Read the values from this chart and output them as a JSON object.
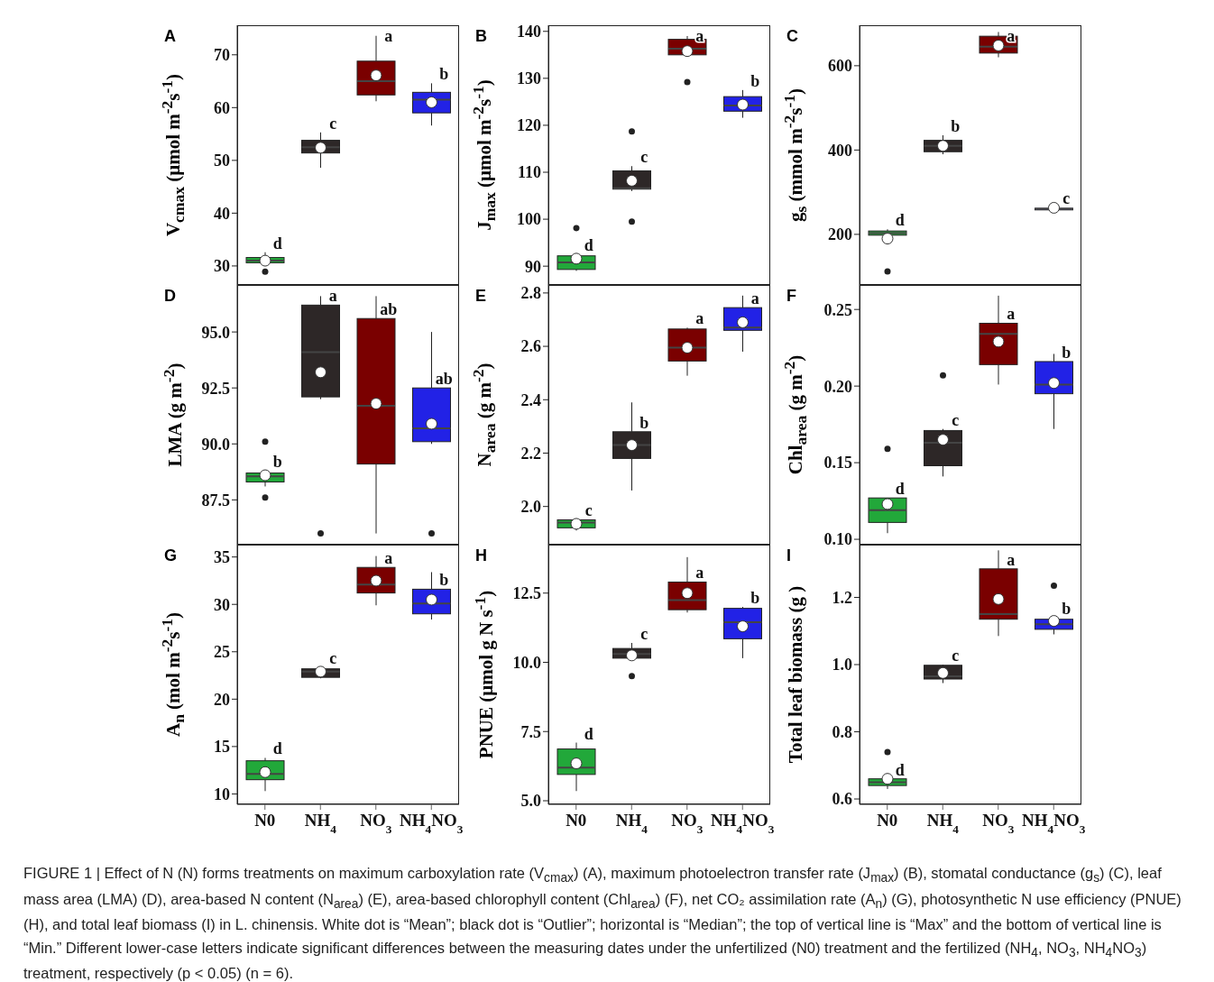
{
  "chart_data": [
    {
      "type": "box",
      "title": "A",
      "ylabel": "V$_{cmax}$ (μmol m$^{-2}$s$^{-1}$)",
      "categories": [
        "N0",
        "NH$_{4}$",
        "NO$_{3}$",
        "NH$_{4}$NO$_{3}$"
      ],
      "colors": [
        "#22a83a",
        "#2d2727",
        "#7a0000",
        "#2222e6"
      ],
      "ylim": [
        26.4,
        75.6
      ],
      "yticks": [
        30,
        40,
        50,
        60,
        70
      ],
      "tick_labels": "y",
      "boxes": [
        {
          "low": 30.2,
          "q1": 30.6,
          "median": 31.0,
          "q3": 31.6,
          "high": 32.6,
          "mean": 31.0,
          "outliers": [
            28.9
          ]
        },
        {
          "low": 48.6,
          "q1": 51.4,
          "median": 52.5,
          "q3": 53.8,
          "high": 55.3,
          "mean": 52.4
        },
        {
          "low": 61.2,
          "q1": 62.4,
          "median": 65.0,
          "q3": 68.8,
          "high": 73.6,
          "mean": 66.1
        },
        {
          "low": 56.6,
          "q1": 59.0,
          "median": 61.5,
          "q3": 62.9,
          "high": 64.6,
          "mean": 61.0
        }
      ],
      "annotations": [
        {
          "text": "d",
          "x": "N0",
          "y": 32.6
        },
        {
          "text": "c",
          "x": "NH$_{4}$",
          "y": 55.3
        },
        {
          "text": "a",
          "x": "NO$_{3}$",
          "y": 73.6
        },
        {
          "text": "b",
          "x": "NH$_{4}$NO$_{3}$",
          "y": 64.6
        }
      ]
    },
    {
      "type": "box",
      "title": "B",
      "ylabel": "J$_{max}$ (μmol m$^{-2}$s$^{-1}$)",
      "categories": [
        "N0",
        "NH$_{4}$",
        "NO$_{3}$",
        "NH$_{4}$NO$_{3}$"
      ],
      "colors": [
        "#22a83a",
        "#2d2727",
        "#7a0000",
        "#2222e6"
      ],
      "ylim": [
        86,
        141.3
      ],
      "yticks": [
        90,
        100,
        110,
        120,
        130,
        140
      ],
      "tick_labels": "y",
      "boxes": [
        {
          "low": 89.0,
          "q1": 89.3,
          "median": 90.8,
          "q3": 92.2,
          "high": 92.5,
          "mean": 91.6,
          "outliers": [
            98.1
          ]
        },
        {
          "low": 106.0,
          "q1": 106.4,
          "median": 106.6,
          "q3": 110.3,
          "high": 111.3,
          "mean": 108.2,
          "outliers": [
            118.7,
            99.5
          ]
        },
        {
          "low": 135.0,
          "q1": 135.0,
          "median": 136.3,
          "q3": 138.3,
          "high": 139.0,
          "mean": 135.8,
          "outliers": [
            129.2
          ]
        },
        {
          "low": 121.6,
          "q1": 123.0,
          "median": 124.2,
          "q3": 126.1,
          "high": 127.5,
          "mean": 124.4
        }
      ],
      "annotations": [
        {
          "text": "d",
          "x": "N0",
          "y": 92.5
        },
        {
          "text": "c",
          "x": "NH$_{4}$",
          "y": 111.3
        },
        {
          "text": "a",
          "x": "NO$_{3}$",
          "y": 139.0
        },
        {
          "text": "b",
          "x": "NH$_{4}$NO$_{3}$",
          "y": 127.5
        }
      ]
    },
    {
      "type": "box",
      "title": "C",
      "ylabel": "g$_{s}$ (mmol m$^{-2}$s$^{-1}$)",
      "categories": [
        "N0",
        "NH$_{4}$",
        "NO$_{3}$",
        "NH$_{4}$NO$_{3}$"
      ],
      "colors": [
        "#22a83a",
        "#2d2727",
        "#7a0000",
        "#2222e6"
      ],
      "ylim": [
        80,
        696
      ],
      "yticks": [
        200,
        400,
        600
      ],
      "tick_labels": "y",
      "boxes": [
        {
          "low": 195,
          "q1": 198,
          "median": 203,
          "q3": 208,
          "high": 212,
          "mean": 190,
          "outliers": [
            112
          ]
        },
        {
          "low": 390,
          "q1": 396,
          "median": 410,
          "q3": 423,
          "high": 435,
          "mean": 410
        },
        {
          "low": 620,
          "q1": 630,
          "median": 645,
          "q3": 670,
          "high": 680,
          "mean": 648
        },
        {
          "low": 257,
          "q1": 258,
          "median": 260,
          "q3": 262,
          "high": 263,
          "mean": 263
        }
      ],
      "annotations": [
        {
          "text": "d",
          "x": "N0",
          "y": 212
        },
        {
          "text": "b",
          "x": "NH$_{4}$",
          "y": 435
        },
        {
          "text": "a",
          "x": "NO$_{3}$",
          "y": 680
        },
        {
          "text": "c",
          "x": "NH$_{4}$NO$_{3}$",
          "y": 263
        }
      ]
    },
    {
      "type": "box",
      "title": "D",
      "ylabel": "LMA (g m$^{-2}$)",
      "categories": [
        "N0",
        "NH$_{4}$",
        "NO$_{3}$",
        "NH$_{4}$NO$_{3}$"
      ],
      "colors": [
        "#22a83a",
        "#2d2727",
        "#7a0000",
        "#2222e6"
      ],
      "ylim": [
        85.5,
        97.1
      ],
      "yticks": [
        {
          "value": 87.5,
          "label": "87.5"
        },
        {
          "value": 90,
          "label": "90.0"
        },
        {
          "value": 92.5,
          "label": "92.5"
        },
        {
          "value": 95,
          "label": "95.0"
        }
      ],
      "tick_labels": "y",
      "boxes": [
        {
          "low": 88.1,
          "q1": 88.3,
          "median": 88.55,
          "q3": 88.7,
          "high": 88.8,
          "mean": 88.6,
          "outliers": [
            90.1,
            87.6
          ]
        },
        {
          "low": 92.0,
          "q1": 92.1,
          "median": 94.1,
          "q3": 96.2,
          "high": 96.6,
          "mean": 93.2,
          "outliers": [
            86.0
          ]
        },
        {
          "low": 86.0,
          "q1": 89.1,
          "median": 91.7,
          "q3": 95.6,
          "high": 96.6,
          "mean": 91.8
        },
        {
          "low": 90.0,
          "q1": 90.1,
          "median": 90.7,
          "q3": 92.5,
          "high": 95.0,
          "mean": 90.9,
          "outliers": [
            86.0
          ]
        }
      ],
      "annotations": [
        {
          "text": "b",
          "x": "N0",
          "y": 88.8
        },
        {
          "text": "a",
          "x": "NH$_{4}$",
          "y": 96.6
        },
        {
          "text": "ab",
          "x": "NO$_{3}$",
          "y": 95.6
        },
        {
          "text": "ab",
          "x": "NH$_{4}$NO$_{3}$",
          "y": 92.5
        }
      ]
    },
    {
      "type": "box",
      "title": "E",
      "ylabel": "N$_{area}$ (g m$^{-2}$)",
      "categories": [
        "N0",
        "NH$_{4}$",
        "NO$_{3}$",
        "NH$_{4}$NO$_{3}$"
      ],
      "colors": [
        "#22a83a",
        "#2d2727",
        "#7a0000",
        "#2222e6"
      ],
      "ylim": [
        1.857,
        2.83
      ],
      "yticks": [
        {
          "value": 2,
          "label": "2.0"
        },
        {
          "value": 2.2,
          "label": "2.2"
        },
        {
          "value": 2.4,
          "label": "2.4"
        },
        {
          "value": 2.6,
          "label": "2.6"
        },
        {
          "value": 2.8,
          "label": "2.8"
        }
      ],
      "tick_labels": "y",
      "boxes": [
        {
          "low": 1.91,
          "q1": 1.92,
          "median": 1.94,
          "q3": 1.95,
          "high": 1.95,
          "mean": 1.935
        },
        {
          "low": 2.06,
          "q1": 2.18,
          "median": 2.23,
          "q3": 2.28,
          "high": 2.39,
          "mean": 2.23
        },
        {
          "low": 2.49,
          "q1": 2.545,
          "median": 2.595,
          "q3": 2.665,
          "high": 2.67,
          "mean": 2.595
        },
        {
          "low": 2.58,
          "q1": 2.66,
          "median": 2.67,
          "q3": 2.745,
          "high": 2.79,
          "mean": 2.69
        }
      ],
      "annotations": [
        {
          "text": "c",
          "x": "N0",
          "y": 1.95
        },
        {
          "text": "b",
          "x": "NH$_{4}$",
          "y": 2.28
        },
        {
          "text": "a",
          "x": "NO$_{3}$",
          "y": 2.67
        },
        {
          "text": "a",
          "x": "NH$_{4}$NO$_{3}$",
          "y": 2.745
        }
      ]
    },
    {
      "type": "box",
      "title": "F",
      "ylabel": "Chl$_{area}$ (g m$^{-2}$)",
      "categories": [
        "N0",
        "NH$_{4}$",
        "NO$_{3}$",
        "NH$_{4}$NO$_{3}$"
      ],
      "colors": [
        "#22a83a",
        "#2d2727",
        "#7a0000",
        "#2222e6"
      ],
      "ylim": [
        0.0965,
        0.266
      ],
      "yticks": [
        {
          "value": 0.1,
          "label": "0.10"
        },
        {
          "value": 0.15,
          "label": "0.15"
        },
        {
          "value": 0.2,
          "label": "0.20"
        },
        {
          "value": 0.25,
          "label": "0.25"
        }
      ],
      "tick_labels": "y",
      "boxes": [
        {
          "low": 0.104,
          "q1": 0.111,
          "median": 0.119,
          "q3": 0.127,
          "high": 0.127,
          "mean": 0.123,
          "outliers": [
            0.159
          ]
        },
        {
          "low": 0.141,
          "q1": 0.148,
          "median": 0.163,
          "q3": 0.171,
          "high": 0.172,
          "mean": 0.165,
          "outliers": [
            0.207
          ]
        },
        {
          "low": 0.201,
          "q1": 0.214,
          "median": 0.234,
          "q3": 0.241,
          "high": 0.259,
          "mean": 0.229
        },
        {
          "low": 0.172,
          "q1": 0.195,
          "median": 0.201,
          "q3": 0.216,
          "high": 0.221,
          "mean": 0.202
        }
      ],
      "annotations": [
        {
          "text": "d",
          "x": "N0",
          "y": 0.127
        },
        {
          "text": "c",
          "x": "NH$_{4}$",
          "y": 0.172
        },
        {
          "text": "a",
          "x": "NO$_{3}$",
          "y": 0.241
        },
        {
          "text": "b",
          "x": "NH$_{4}$NO$_{3}$",
          "y": 0.216
        }
      ]
    },
    {
      "type": "box",
      "title": "G",
      "ylabel": "A$_{n}$ (mol m$^{-2}$s$^{-1}$)",
      "categories": [
        "N0",
        "NH$_{4}$",
        "NO$_{3}$",
        "NH$_{4}$NO$_{3}$"
      ],
      "colors": [
        "#22a83a",
        "#2d2727",
        "#7a0000",
        "#2222e6"
      ],
      "ylim": [
        8.9,
        36.3
      ],
      "yticks": [
        10,
        15,
        20,
        25,
        30,
        35
      ],
      "boxes": [
        {
          "low": 10.3,
          "q1": 11.5,
          "median": 12.1,
          "q3": 13.5,
          "high": 13.8,
          "mean": 12.3
        },
        {
          "low": 22.2,
          "q1": 22.3,
          "median": 22.9,
          "q3": 23.2,
          "high": 23.4,
          "mean": 22.9
        },
        {
          "low": 29.9,
          "q1": 31.2,
          "median": 32.1,
          "q3": 33.9,
          "high": 35.1,
          "mean": 32.5
        },
        {
          "low": 28.4,
          "q1": 29.0,
          "median": 30.1,
          "q3": 31.6,
          "high": 33.4,
          "mean": 30.5
        }
      ],
      "annotations": [
        {
          "text": "d",
          "x": "N0",
          "y": 13.8
        },
        {
          "text": "c",
          "x": "NH$_{4}$",
          "y": 23.4
        },
        {
          "text": "a",
          "x": "NO$_{3}$",
          "y": 33.9
        },
        {
          "text": "b",
          "x": "NH$_{4}$NO$_{3}$",
          "y": 31.6
        }
      ]
    },
    {
      "type": "box",
      "title": "H",
      "ylabel": "PNUE (μmol g N s$^{-1}$)",
      "categories": [
        "N0",
        "NH$_{4}$",
        "NO$_{3}$",
        "NH$_{4}$NO$_{3}$"
      ],
      "colors": [
        "#22a83a",
        "#2d2727",
        "#7a0000",
        "#2222e6"
      ],
      "ylim": [
        4.87,
        14.25
      ],
      "yticks": [
        {
          "value": 5,
          "label": "5.0"
        },
        {
          "value": 7.5,
          "label": "7.5"
        },
        {
          "value": 10,
          "label": "10.0"
        },
        {
          "value": 12.5,
          "label": "12.5"
        }
      ],
      "boxes": [
        {
          "low": 5.35,
          "q1": 5.95,
          "median": 6.2,
          "q3": 6.87,
          "high": 7.1,
          "mean": 6.35
        },
        {
          "low": 10.1,
          "q1": 10.15,
          "median": 10.3,
          "q3": 10.5,
          "high": 10.7,
          "mean": 10.25,
          "outliers": [
            9.5
          ]
        },
        {
          "low": 11.8,
          "q1": 11.9,
          "median": 12.25,
          "q3": 12.9,
          "high": 13.8,
          "mean": 12.5
        },
        {
          "low": 10.15,
          "q1": 10.85,
          "median": 11.45,
          "q3": 11.95,
          "high": 12.0,
          "mean": 11.3
        }
      ],
      "annotations": [
        {
          "text": "d",
          "x": "N0",
          "y": 7.1
        },
        {
          "text": "c",
          "x": "NH$_{4}$",
          "y": 10.7
        },
        {
          "text": "a",
          "x": "NO$_{3}$",
          "y": 12.9
        },
        {
          "text": "b",
          "x": "NH$_{4}$NO$_{3}$",
          "y": 12.0
        }
      ]
    },
    {
      "type": "box",
      "title": "I",
      "ylabel": "Total leaf biomass (g )",
      "categories": [
        "N0",
        "NH$_{4}$",
        "NO$_{3}$",
        "NH$_{4}$NO$_{3}$"
      ],
      "colors": [
        "#22a83a",
        "#2d2727",
        "#7a0000",
        "#2222e6"
      ],
      "ylim": [
        0.584,
        1.357
      ],
      "yticks": [
        {
          "value": 0.6,
          "label": "0.6"
        },
        {
          "value": 0.8,
          "label": "0.8"
        },
        {
          "value": 1,
          "label": "1.0"
        },
        {
          "value": 1.2,
          "label": "1.2"
        }
      ],
      "boxes": [
        {
          "low": 0.63,
          "q1": 0.64,
          "median": 0.65,
          "q3": 0.66,
          "high": 0.66,
          "mean": 0.66,
          "outliers": [
            0.74
          ]
        },
        {
          "low": 0.945,
          "q1": 0.957,
          "median": 0.965,
          "q3": 0.998,
          "high": 1.0,
          "mean": 0.975
        },
        {
          "low": 1.085,
          "q1": 1.135,
          "median": 1.15,
          "q3": 1.285,
          "high": 1.34,
          "mean": 1.195
        },
        {
          "low": 1.09,
          "q1": 1.105,
          "median": 1.12,
          "q3": 1.135,
          "high": 1.14,
          "mean": 1.13,
          "outliers": [
            1.235
          ]
        }
      ],
      "annotations": [
        {
          "text": "d",
          "x": "N0",
          "y": 0.66
        },
        {
          "text": "c",
          "x": "NH$_{4}$",
          "y": 1.0
        },
        {
          "text": "a",
          "x": "NO$_{3}$",
          "y": 1.285
        },
        {
          "text": "b",
          "x": "NH$_{4}$NO$_{3}$",
          "y": 1.14
        },
        "FIGURE 1 | Effect of N (N) forms treatments on maximum carboxylation rate (V$_{cmax}$) (A), maximum photoelectron transfer rate (J$_{max}$) (B), stomatal conductance (g$_{s}$) (C), leaf mass area (LMA) (D), area-based N content (N$_{area}$) (E), area-based chlorophyll content (Chl$_{area}$) (F), net CO₂ assimilation rate (A$_{n}$) (G), photosynthetic N use efficiency (PNUE) (H), and total leaf biomass (I) in L. chinensis. White dot is “Mean”; black dot is “Outlier”; horizontal is “Median”; the top of vertical line is “Max” and the bottom of vertical line is “Min.” Different lower-case letters indicate significant differences between the measuring dates under the unfertilized (N0) treatment and the fertilized (NH$_{4}$, NO$_{3}$, NH$_{4}$NO$_{3}$) treatment, respectively (p < 0.05) (n = 6)."
      ]
    }
  ]
}
